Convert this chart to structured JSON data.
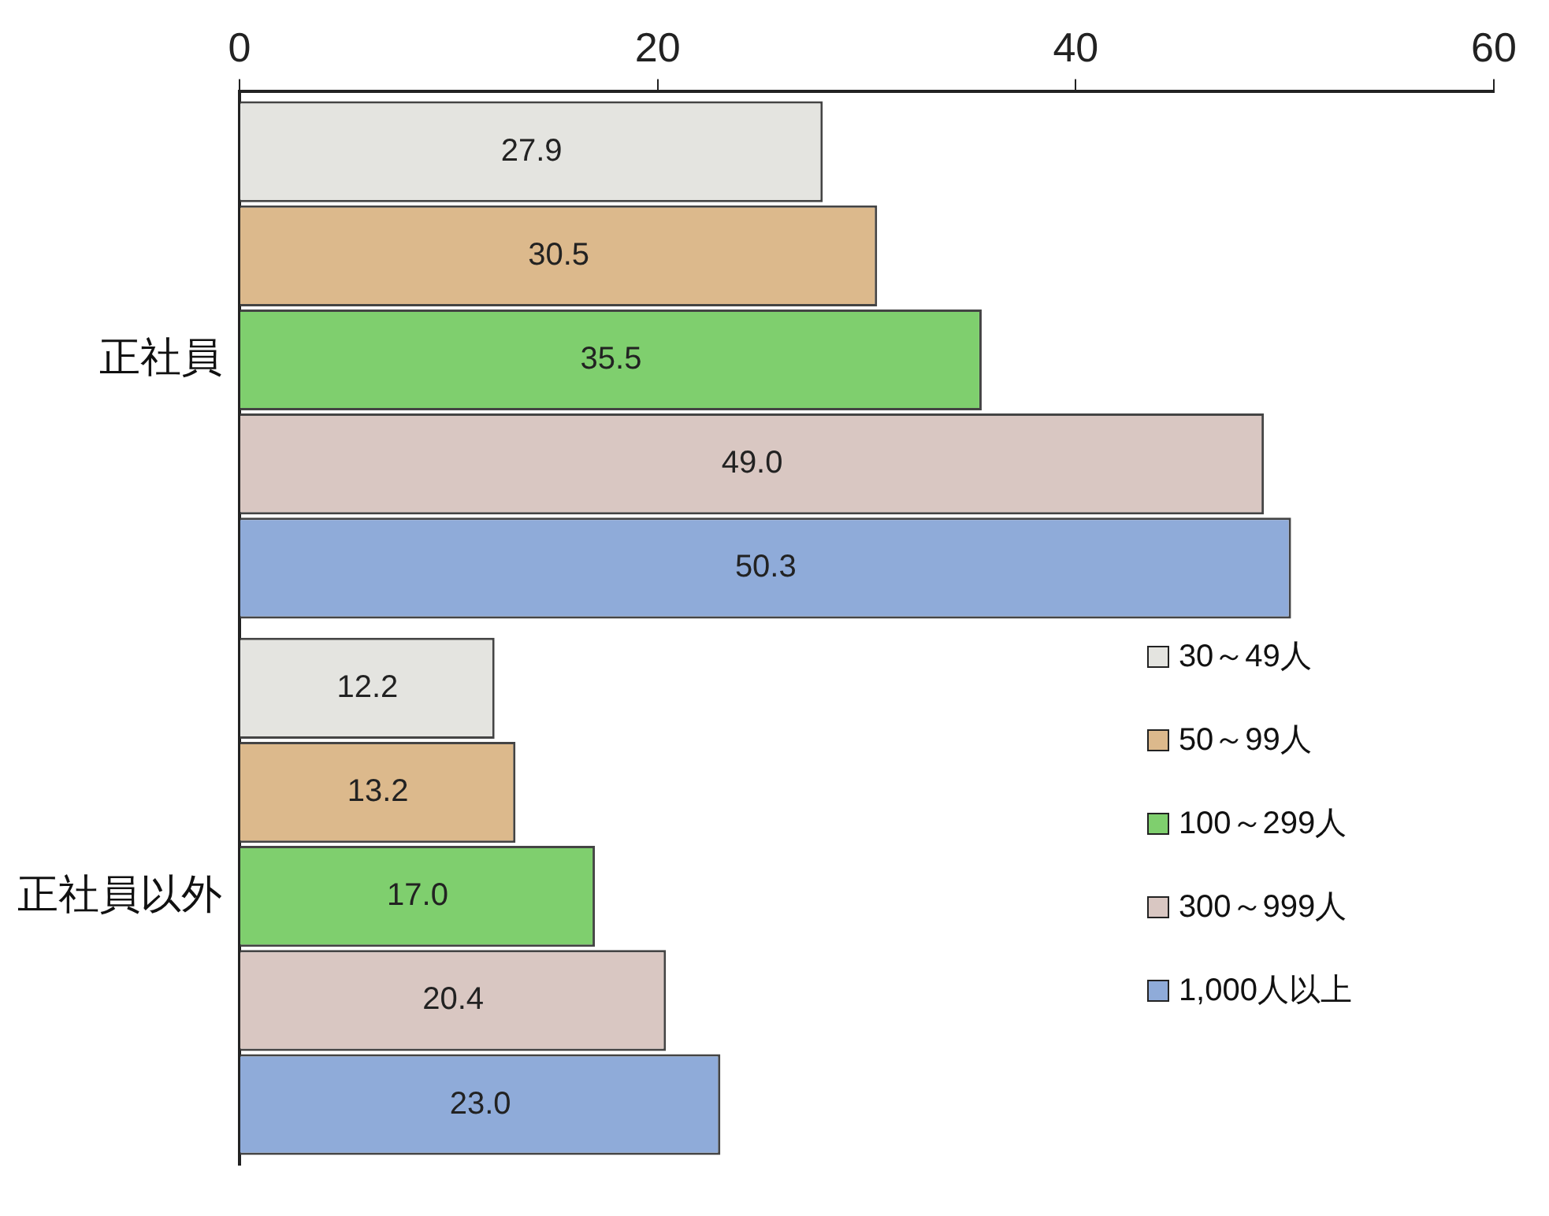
{
  "chart_data": {
    "type": "bar",
    "orientation": "horizontal",
    "categories": [
      "正社員",
      "正社員以外"
    ],
    "series": [
      {
        "name": "30～49人",
        "color": "#e4e4e0",
        "values": [
          27.9,
          12.2
        ],
        "value_labels": [
          "27.9",
          "12.2"
        ]
      },
      {
        "name": "50～99人",
        "color": "#dcb98c",
        "values": [
          30.5,
          13.2
        ],
        "value_labels": [
          "30.5",
          "13.2"
        ]
      },
      {
        "name": "100～299人",
        "color": "#7fcf6e",
        "values": [
          35.5,
          17
        ],
        "value_labels": [
          "35.5",
          "17.0"
        ]
      },
      {
        "name": "300～999人",
        "color": "#d9c7c2",
        "values": [
          49,
          20.4
        ],
        "value_labels": [
          "49.0",
          "20.4"
        ]
      },
      {
        "name": "1,000人以上",
        "color": "#8fabd9",
        "values": [
          50.3,
          23
        ],
        "value_labels": [
          "50.3",
          "23.0"
        ]
      }
    ],
    "xlim": [
      0,
      60
    ],
    "xticks": [
      0,
      20,
      40,
      60
    ],
    "legend": "bottom right",
    "grid": false
  }
}
